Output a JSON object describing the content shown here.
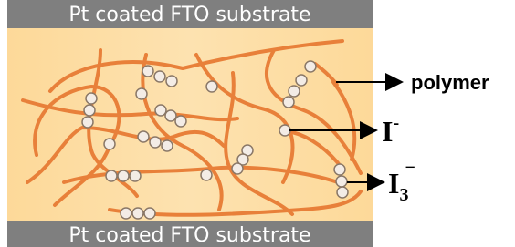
{
  "substrate_top": {
    "label": "Pt coated FTO substrate"
  },
  "substrate_bottom": {
    "label": "Pt coated FTO substrate"
  },
  "labels": {
    "polymer": "polymer",
    "iodide": {
      "symbol": "I",
      "charge": "-"
    },
    "triiodide": {
      "symbol": "I",
      "subscript": "3",
      "charge": "−"
    }
  }
}
